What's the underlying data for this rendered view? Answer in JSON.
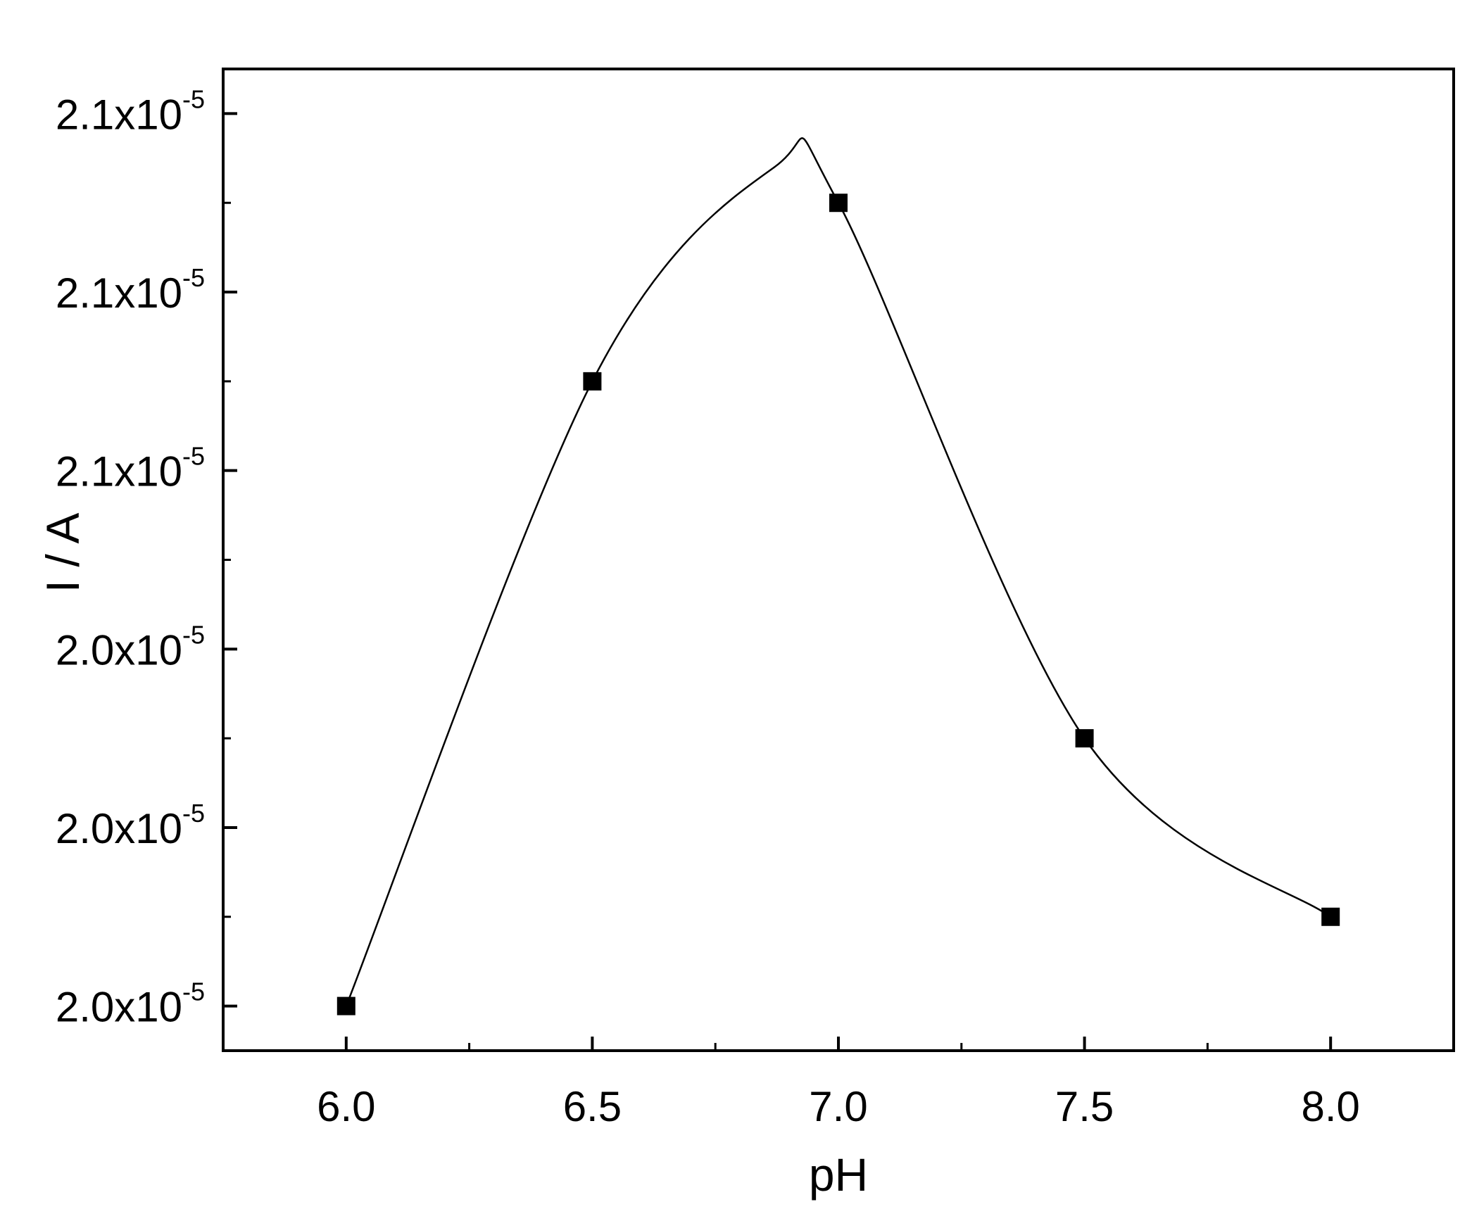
{
  "chart_data": {
    "type": "line",
    "title": "",
    "xlabel": "pH",
    "ylabel": "I / A",
    "xlim": [
      5.75,
      8.25
    ],
    "ylim": [
      1.9845,
      2.0395
    ],
    "x_ticks": [
      {
        "value": 6.0,
        "label": "6.0"
      },
      {
        "value": 6.5,
        "label": "6.5"
      },
      {
        "value": 7.0,
        "label": "7.0"
      },
      {
        "value": 7.5,
        "label": "7.5"
      },
      {
        "value": 8.0,
        "label": "8.0"
      }
    ],
    "x_minor_ticks": [
      6.25,
      6.75,
      7.25,
      7.75
    ],
    "y_ticks": [
      {
        "value": 1.987,
        "mantissa": "2.0x10",
        "exponent": "-5"
      },
      {
        "value": 1.997,
        "mantissa": "2.0x10",
        "exponent": "-5"
      },
      {
        "value": 2.007,
        "mantissa": "2.0x10",
        "exponent": "-5"
      },
      {
        "value": 2.017,
        "mantissa": "2.1x10",
        "exponent": "-5"
      },
      {
        "value": 2.027,
        "mantissa": "2.1x10",
        "exponent": "-5"
      },
      {
        "value": 2.037,
        "mantissa": "2.1x10",
        "exponent": "-5"
      }
    ],
    "y_minor_ticks": [
      1.992,
      2.002,
      2.012,
      2.022,
      2.032
    ],
    "y_unit_note": "values ×10^-5 A",
    "series": [
      {
        "marker": "square",
        "color": "#000000",
        "x": [
          6.0,
          6.5,
          7.0,
          7.5,
          8.0
        ],
        "y": [
          1.987,
          2.022,
          2.032,
          2.002,
          1.992
        ]
      }
    ],
    "fit_curve": {
      "description": "smooth spline through points",
      "peak": {
        "x": 6.87,
        "y": 2.034
      }
    },
    "grid": false,
    "legend": "none"
  }
}
